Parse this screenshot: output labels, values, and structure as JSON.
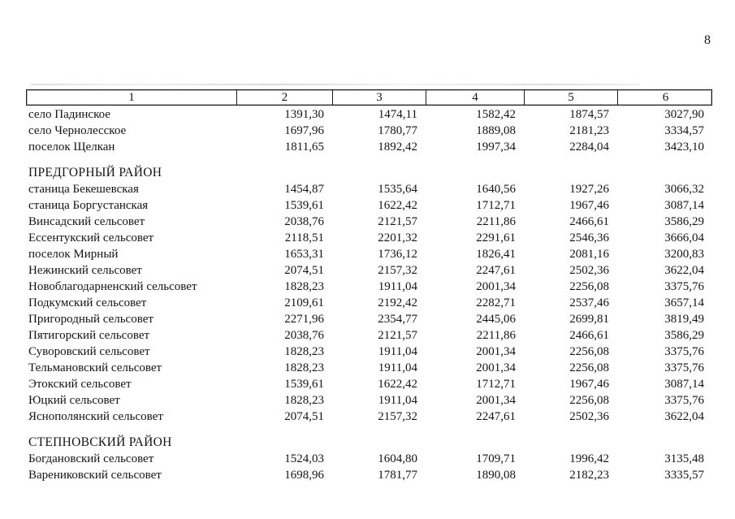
{
  "page": {
    "number": "8"
  },
  "table": {
    "columns": [
      "1",
      "2",
      "3",
      "4",
      "5",
      "6"
    ],
    "sections": [
      {
        "header": "",
        "rows": [
          {
            "name": "село Падинское",
            "values": [
              "1391,30",
              "1474,11",
              "1582,42",
              "1874,57",
              "3027,90"
            ]
          },
          {
            "name": "село Чернолесское",
            "values": [
              "1697,96",
              "1780,77",
              "1889,08",
              "2181,23",
              "3334,57"
            ]
          },
          {
            "name": "поселок Щелкан",
            "values": [
              "1811,65",
              "1892,42",
              "1997,34",
              "2284,04",
              "3423,10"
            ]
          }
        ]
      },
      {
        "header": "ПРЕДГОРНЫЙ РАЙОН",
        "rows": [
          {
            "name": "станица Бекешевская",
            "values": [
              "1454,87",
              "1535,64",
              "1640,56",
              "1927,26",
              "3066,32"
            ]
          },
          {
            "name": "станица Боргустанская",
            "values": [
              "1539,61",
              "1622,42",
              "1712,71",
              "1967,46",
              "3087,14"
            ]
          },
          {
            "name": "Винсадский сельсовет",
            "values": [
              "2038,76",
              "2121,57",
              "2211,86",
              "2466,61",
              "3586,29"
            ]
          },
          {
            "name": "Ессентукский сельсовет",
            "values": [
              "2118,51",
              "2201,32",
              "2291,61",
              "2546,36",
              "3666,04"
            ]
          },
          {
            "name": "поселок Мирный",
            "values": [
              "1653,31",
              "1736,12",
              "1826,41",
              "2081,16",
              "3200,83"
            ]
          },
          {
            "name": "Нежинский сельсовет",
            "values": [
              "2074,51",
              "2157,32",
              "2247,61",
              "2502,36",
              "3622,04"
            ]
          },
          {
            "name": "Новоблагодарненский сельсовет",
            "values": [
              "1828,23",
              "1911,04",
              "2001,34",
              "2256,08",
              "3375,76"
            ]
          },
          {
            "name": "Подкумский сельсовет",
            "values": [
              "2109,61",
              "2192,42",
              "2282,71",
              "2537,46",
              "3657,14"
            ]
          },
          {
            "name": "Пригородный сельсовет",
            "values": [
              "2271,96",
              "2354,77",
              "2445,06",
              "2699,81",
              "3819,49"
            ]
          },
          {
            "name": "Пятигорский сельсовет",
            "values": [
              "2038,76",
              "2121,57",
              "2211,86",
              "2466,61",
              "3586,29"
            ]
          },
          {
            "name": "Суворовский сельсовет",
            "values": [
              "1828,23",
              "1911,04",
              "2001,34",
              "2256,08",
              "3375,76"
            ]
          },
          {
            "name": "Тельмановский сельсовет",
            "values": [
              "1828,23",
              "1911,04",
              "2001,34",
              "2256,08",
              "3375,76"
            ]
          },
          {
            "name": "Этокский сельсовет",
            "values": [
              "1539,61",
              "1622,42",
              "1712,71",
              "1967,46",
              "3087,14"
            ]
          },
          {
            "name": "Юцкий сельсовет",
            "values": [
              "1828,23",
              "1911,04",
              "2001,34",
              "2256,08",
              "3375,76"
            ]
          },
          {
            "name": "Яснополянский сельсовет",
            "values": [
              "2074,51",
              "2157,32",
              "2247,61",
              "2502,36",
              "3622,04"
            ]
          }
        ]
      },
      {
        "header": "СТЕПНОВСКИЙ РАЙОН",
        "rows": [
          {
            "name": "Богдановский сельсовет",
            "values": [
              "1524,03",
              "1604,80",
              "1709,71",
              "1996,42",
              "3135,48"
            ]
          },
          {
            "name": "Варениковский сельсовет",
            "values": [
              "1698,96",
              "1781,77",
              "1890,08",
              "2182,23",
              "3335,57"
            ]
          }
        ]
      }
    ]
  }
}
